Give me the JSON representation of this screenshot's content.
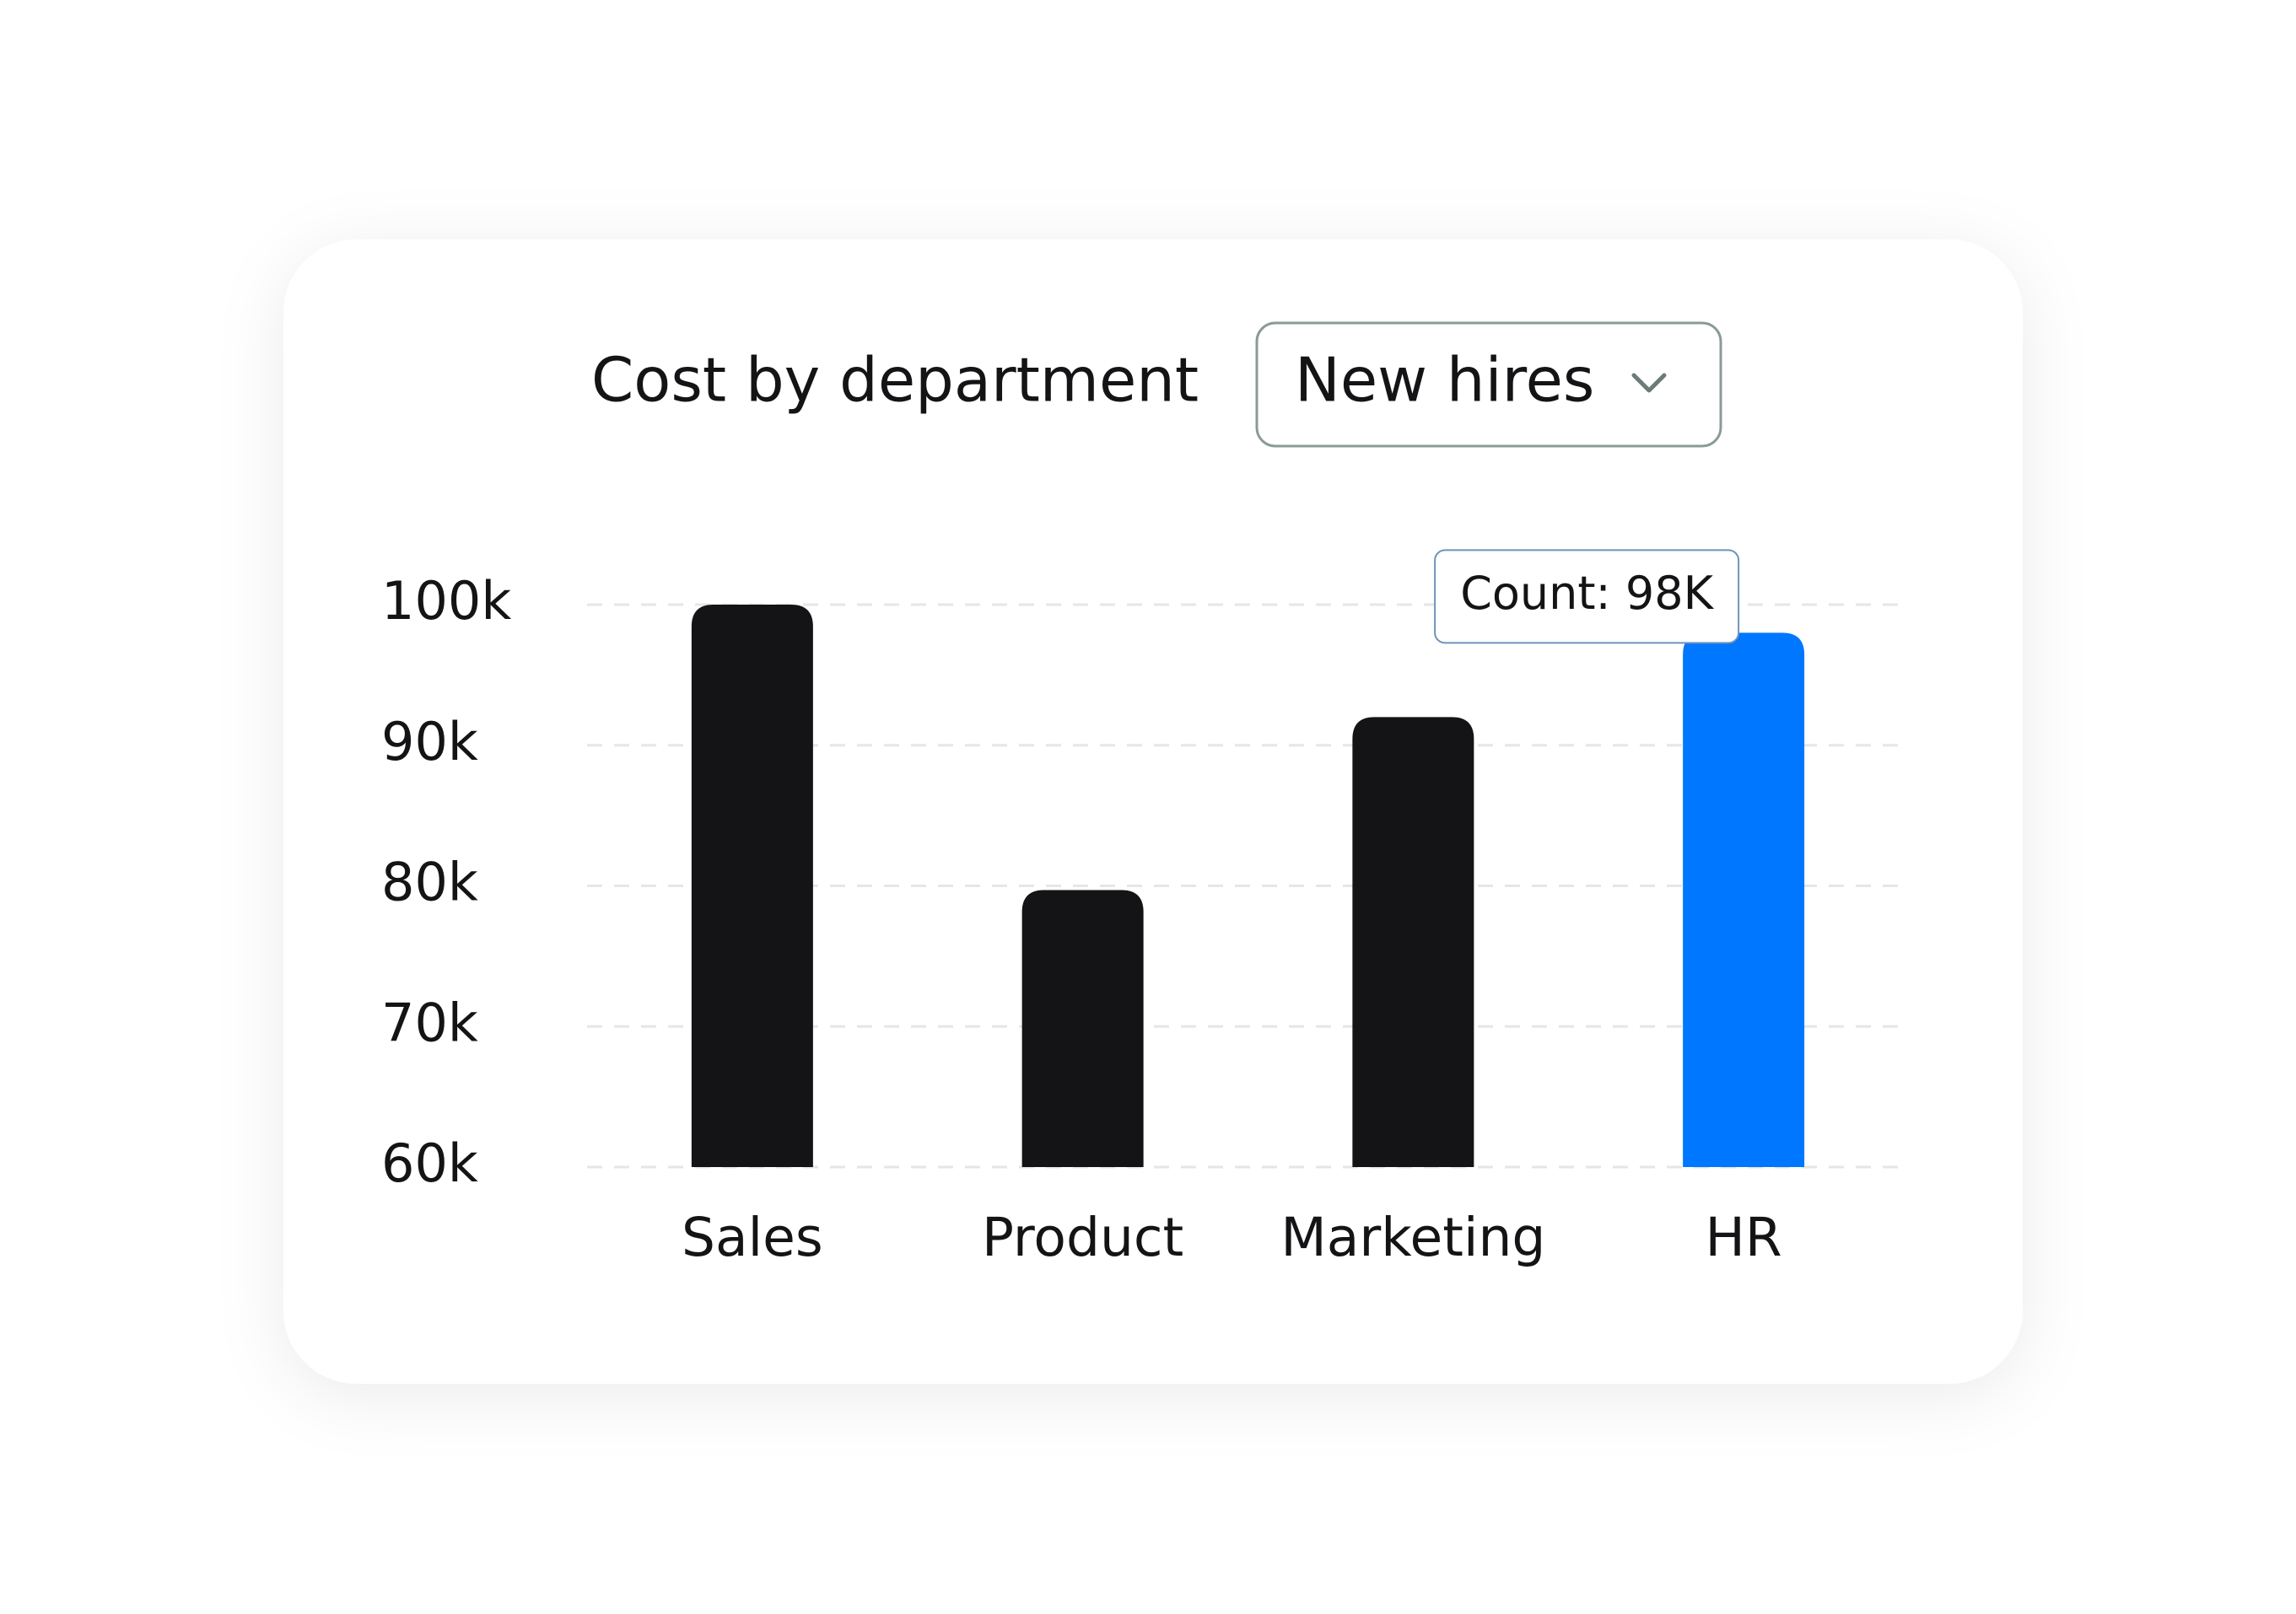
{
  "chart_data": {
    "type": "bar",
    "title": "Cost by department",
    "categories": [
      "Sales",
      "Product",
      "Marketing",
      "HR"
    ],
    "values": [
      100000,
      79700,
      92000,
      98000
    ],
    "value_labels": [
      null,
      null,
      null,
      "Count: 98K"
    ],
    "colors": [
      "#141416",
      "#141416",
      "#141416",
      "#0077ff"
    ],
    "ylim": [
      60000,
      100000
    ],
    "yticks": [
      {
        "value": 60000,
        "label": "60k"
      },
      {
        "value": 70000,
        "label": "70k"
      },
      {
        "value": 80000,
        "label": "80k"
      },
      {
        "value": 90000,
        "label": "90k"
      },
      {
        "value": 100000,
        "label": "100k"
      }
    ],
    "grid": true
  },
  "controls": {
    "dropdown": "New hires"
  }
}
